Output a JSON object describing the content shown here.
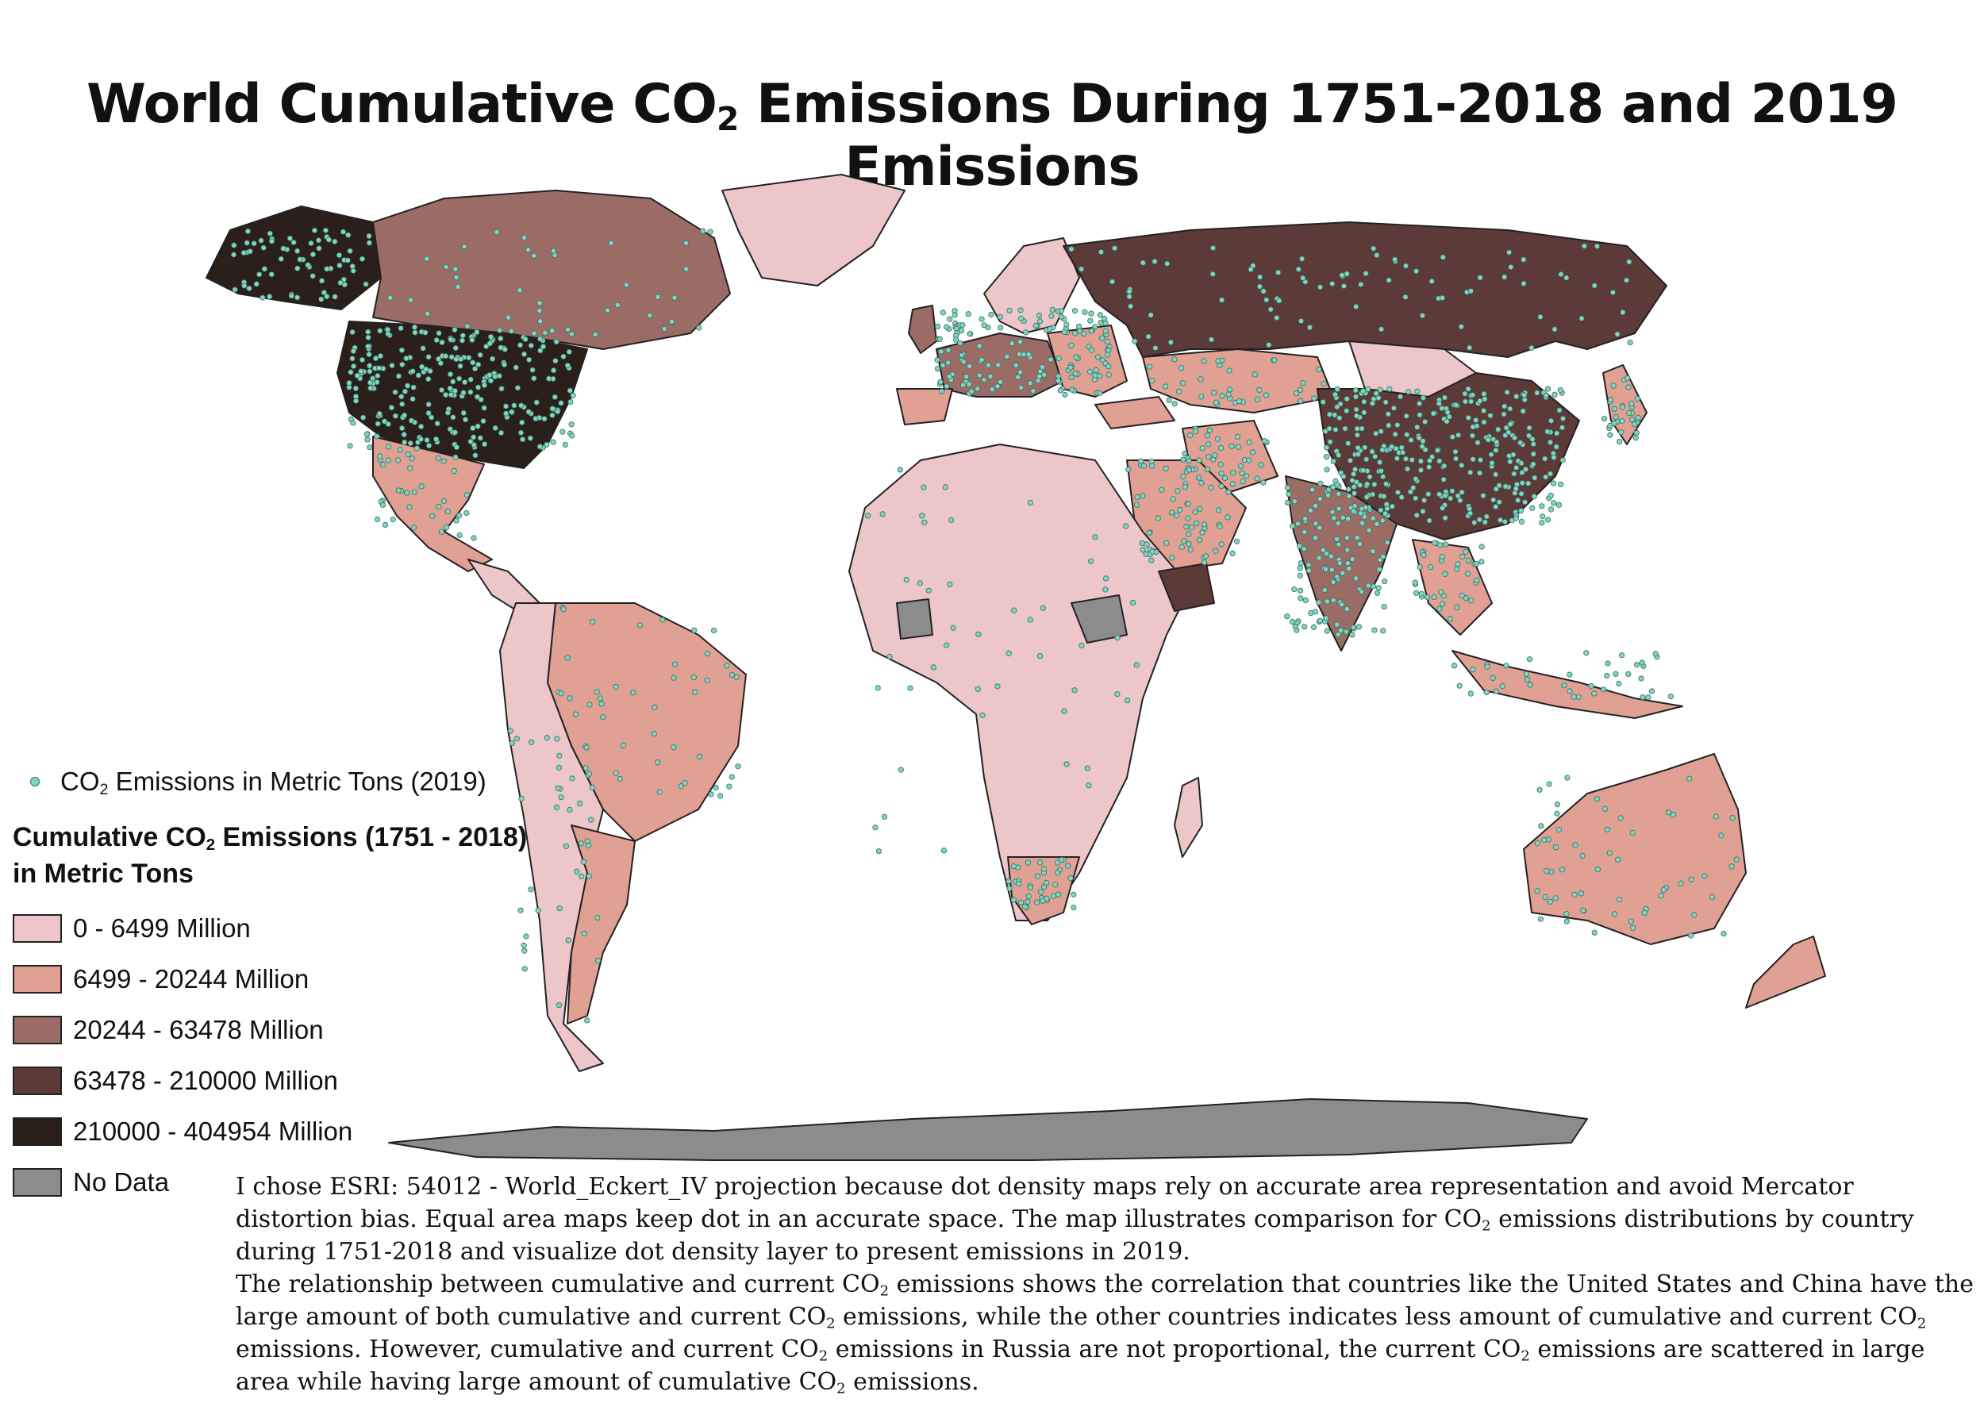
{
  "title": {
    "prefix": "World Cumulative CO",
    "sub": "2",
    "suffix": " Emissions During 1751-2018 and 2019 Emissions"
  },
  "legend": {
    "dot_label": {
      "prefix": "CO",
      "sub": "2",
      "suffix": " Emissions in Metric Tons (2019)"
    },
    "title_line1": {
      "prefix": "Cumulative CO",
      "sub": "2",
      "suffix": " Emissions (1751 - 2018)"
    },
    "title_line2": "in Metric Tons",
    "classes": [
      {
        "label": "0 - 6499 Million",
        "color": "#ecc6c8"
      },
      {
        "label": "6499 - 20244 Million",
        "color": "#e0a093"
      },
      {
        "label": "20244 - 63478 Million",
        "color": "#9b6c66"
      },
      {
        "label": "63478 - 210000 Million",
        "color": "#5c3a38"
      },
      {
        "label": "210000 - 404954 Million",
        "color": "#2b1f1b"
      },
      {
        "label": "No Data",
        "color": "#8c8c8c"
      }
    ]
  },
  "dot_color": "#7fd6c0",
  "note": {
    "p1_a": "I chose ESRI: 54012 - World_Eckert_IV projection because dot density maps rely on accurate area representation and avoid Mercator distortion bias. Equal area maps keep dot in an accurate space. The map illustrates comparison for CO",
    "p1_b": " emissions distributions by country during 1751-2018 and visualize dot density layer to present emissions in 2019.",
    "p2_a": "The relationship between cumulative and current CO",
    "p2_b": " emissions shows the correlation that countries like the United States and China have the large amount of both cumulative and current CO",
    "p2_c": "  emissions, while the other countries indicates less amount of cumulative and current CO",
    "p2_d": " emissions. However, cumulative and current CO",
    "p2_e": " emissions in Russia are not proportional, the current CO",
    "p2_f": " emissions are scattered in large area while having large amount of cumulative CO",
    "p2_g": " emissions.",
    "sub": "2"
  }
}
